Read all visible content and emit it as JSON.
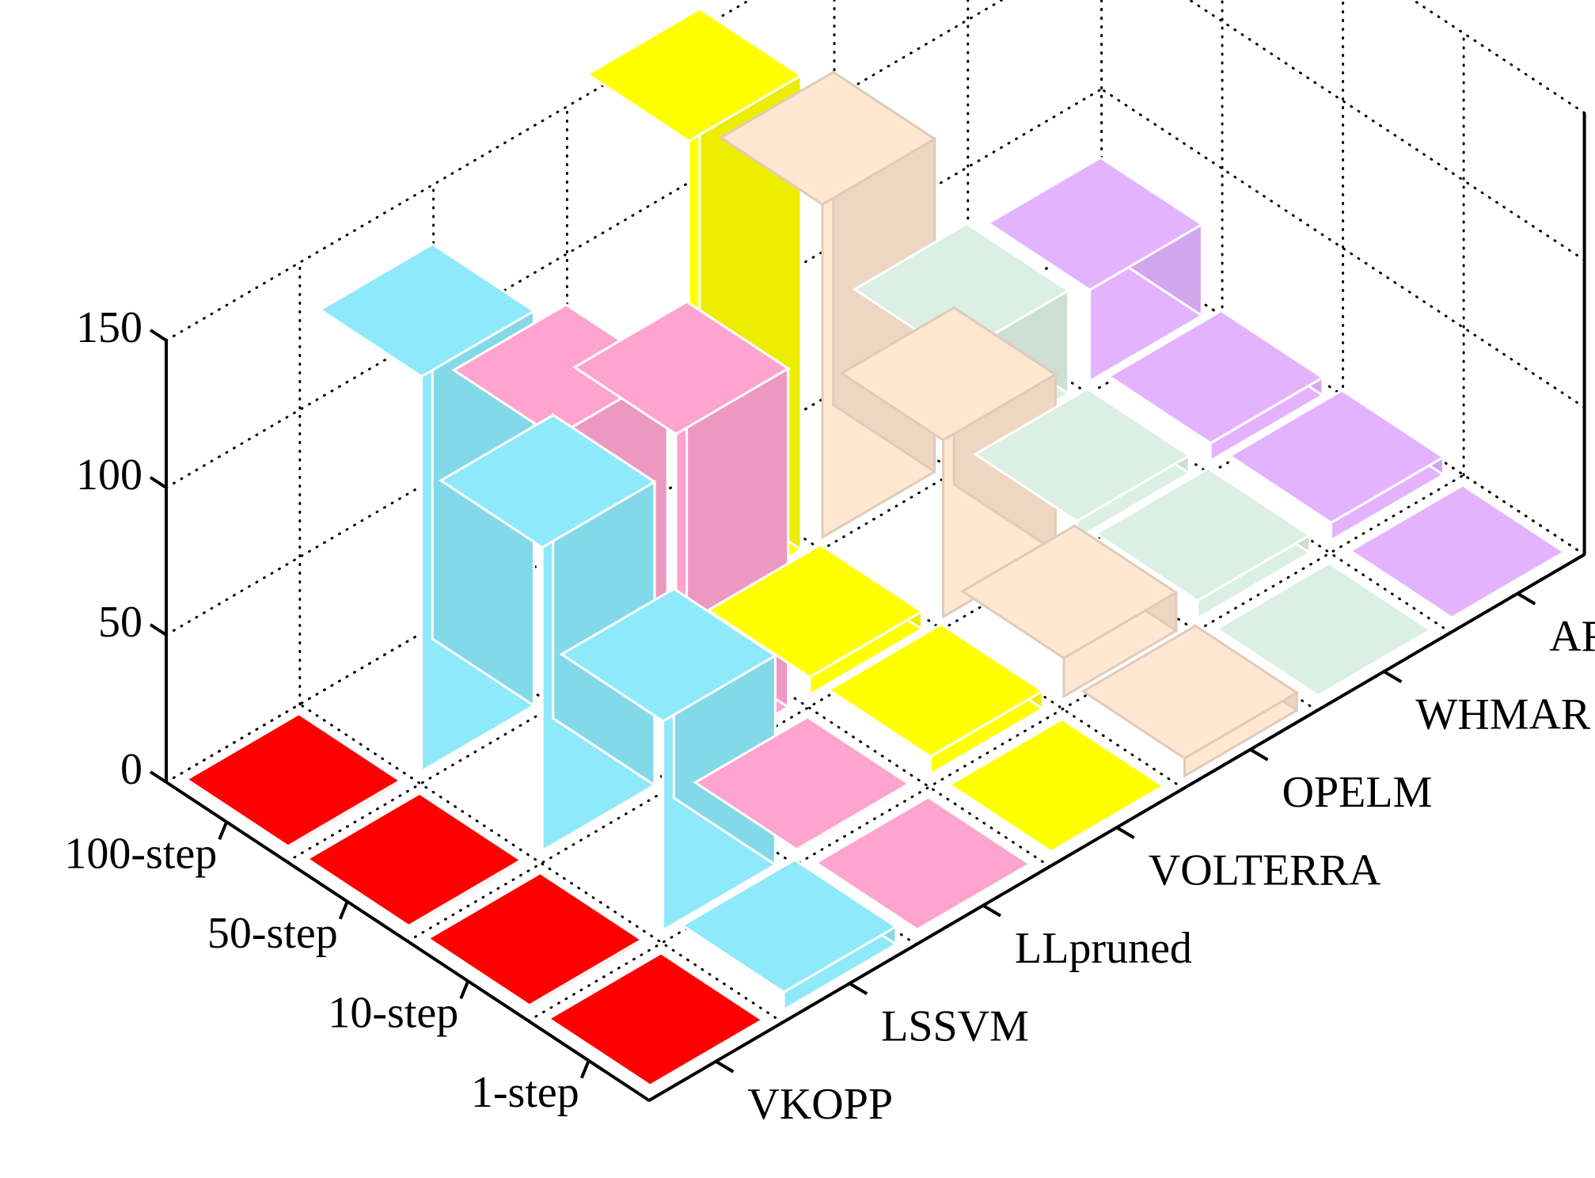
{
  "chart_data": {
    "type": "bar3d",
    "title": "",
    "xlabel": "",
    "ylabel": "",
    "zlabel": "",
    "zlim": [
      0,
      150
    ],
    "z_ticks": [
      "0",
      "50",
      "100",
      "150"
    ],
    "grid": true,
    "horizons": [
      "100-step",
      "50-step",
      "10-step",
      "1-step"
    ],
    "methods": [
      "VKOPP",
      "LSSVM",
      "LLpruned",
      "VOLTERRA",
      "OPELM",
      "WHMAR",
      "AR"
    ],
    "series": [
      {
        "name": "VKOPP",
        "color": "#e8e8e8",
        "values": [
          0,
          0,
          0,
          0
        ]
      },
      {
        "name": "LSSVM",
        "color": "#00ff00",
        "values": [
          0,
          0,
          0,
          0
        ]
      },
      {
        "name": "LLpruned",
        "color": "#ff0000",
        "values": [
          0,
          0,
          0,
          0
        ]
      },
      {
        "name": "VOLTERRA",
        "color": "#ffffff",
        "values": [
          0,
          0,
          0,
          0
        ]
      },
      {
        "name": "OPELM",
        "color": "#ff0000",
        "values": [
          1,
          1,
          1,
          0
        ]
      },
      {
        "name": "WHMAR",
        "color": "#ffd27a",
        "values": [
          0,
          0,
          0,
          0
        ]
      },
      {
        "name": "AR",
        "color": "#ffffff",
        "values": [
          0,
          0,
          0,
          0
        ]
      }
    ],
    "bars": [
      {
        "horizon": "100-step",
        "method": "VKOPP",
        "color": "#ff0000",
        "value": 1
      },
      {
        "horizon": "50-step",
        "method": "VKOPP",
        "color": "#ff0000",
        "value": 1
      },
      {
        "horizon": "10-step",
        "method": "VKOPP",
        "color": "#ff0000",
        "value": 1
      },
      {
        "horizon": "1-step",
        "method": "VKOPP",
        "color": "#ff0000",
        "value": 0
      },
      {
        "horizon": "100-step",
        "method": "LSSVM",
        "color": "#8ee9fa",
        "value": 134
      },
      {
        "horizon": "50-step",
        "method": "LSSVM",
        "color": "#8ee9fa",
        "value": 103
      },
      {
        "horizon": "10-step",
        "method": "LSSVM",
        "color": "#8ee9fa",
        "value": 71
      },
      {
        "horizon": "1-step",
        "method": "LSSVM",
        "color": "#8ee9fa",
        "value": 6
      },
      {
        "horizon": "100-step",
        "method": "LLpruned",
        "color": "#ffa3cf",
        "value": 87
      },
      {
        "horizon": "50-step",
        "method": "LLpruned",
        "color": "#ffa3cf",
        "value": 115
      },
      {
        "horizon": "10-step",
        "method": "LLpruned",
        "color": "#ffa3cf",
        "value": 1
      },
      {
        "horizon": "1-step",
        "method": "LLpruned",
        "color": "#ffa3cf",
        "value": 0
      },
      {
        "horizon": "100-step",
        "method": "VOLTERRA",
        "color": "#ffff00",
        "value": 161
      },
      {
        "horizon": "50-step",
        "method": "VOLTERRA",
        "color": "#ffff00",
        "value": 6
      },
      {
        "horizon": "10-step",
        "method": "VOLTERRA",
        "color": "#ffff00",
        "value": 6
      },
      {
        "horizon": "1-step",
        "method": "VOLTERRA",
        "color": "#ffff00",
        "value": 0
      },
      {
        "horizon": "100-step",
        "method": "OPELM",
        "color": "#ffe7d2",
        "value": 113
      },
      {
        "horizon": "50-step",
        "method": "OPELM",
        "color": "#ffe7d2",
        "value": 60
      },
      {
        "horizon": "10-step",
        "method": "OPELM",
        "color": "#ffe7d2",
        "value": 13
      },
      {
        "horizon": "1-step",
        "method": "OPELM",
        "color": "#ffe7d2",
        "value": 6
      },
      {
        "horizon": "100-step",
        "method": "WHMAR",
        "color": "#dcefe4",
        "value": 35
      },
      {
        "horizon": "50-step",
        "method": "WHMAR",
        "color": "#dcefe4",
        "value": 6
      },
      {
        "horizon": "10-step",
        "method": "WHMAR",
        "color": "#dcefe4",
        "value": 6
      },
      {
        "horizon": "1-step",
        "method": "WHMAR",
        "color": "#dcefe4",
        "value": 0
      },
      {
        "horizon": "100-step",
        "method": "AR",
        "color": "#e4b3ff",
        "value": 31
      },
      {
        "horizon": "50-step",
        "method": "AR",
        "color": "#e4b3ff",
        "value": 6
      },
      {
        "horizon": "10-step",
        "method": "AR",
        "color": "#e4b3ff",
        "value": 6
      },
      {
        "horizon": "1-step",
        "method": "AR",
        "color": "#e4b3ff",
        "value": 0
      }
    ]
  }
}
